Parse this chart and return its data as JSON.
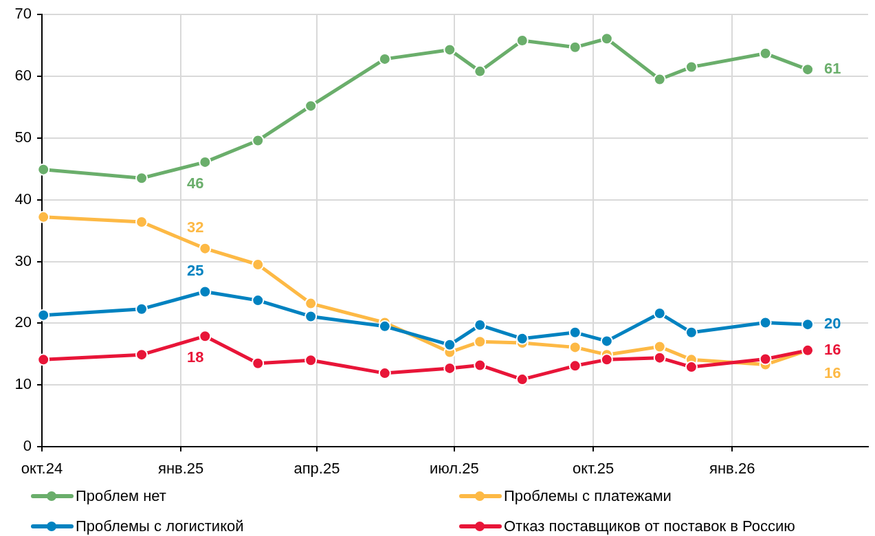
{
  "chart_data": {
    "type": "line",
    "x": [
      "2024-10-02",
      "2024-12-06",
      "2025-01-17",
      "2025-02-21",
      "2025-03-28",
      "2025-05-16",
      "2025-06-28",
      "2025-07-18",
      "2025-08-15",
      "2025-09-19",
      "2025-10-10",
      "2025-11-14",
      "2025-12-05",
      "2026-01-23",
      "2026-02-20"
    ],
    "xlim": [
      "2024-10-01",
      "2026-04-01"
    ],
    "xticks": [
      {
        "value": "2024-10-01",
        "label": "окт.24"
      },
      {
        "value": "2025-01-01",
        "label": "янв.25"
      },
      {
        "value": "2025-04-01",
        "label": "апр.25"
      },
      {
        "value": "2025-07-01",
        "label": "июл.25"
      },
      {
        "value": "2025-10-01",
        "label": "окт.25"
      },
      {
        "value": "2026-01-01",
        "label": "янв.26"
      }
    ],
    "ylim": [
      0,
      70
    ],
    "yticks": [
      0,
      10,
      20,
      30,
      40,
      50,
      60,
      70
    ],
    "grid": true,
    "legend": "bottom",
    "marker": "circle",
    "line_style": "solid",
    "series": [
      {
        "name": "Проблем нет",
        "color": "#6aae6b",
        "values": [
          44.9,
          43.5,
          46.1,
          49.6,
          55.2,
          62.8,
          64.3,
          60.8,
          65.8,
          64.7,
          66.1,
          59.5,
          61.5,
          63.7,
          61.1
        ],
        "value_labels": [
          null,
          null,
          "46",
          null,
          null,
          null,
          null,
          null,
          null,
          null,
          null,
          null,
          null,
          null,
          "61"
        ]
      },
      {
        "name": "Проблемы с платежами",
        "color": "#fdb945",
        "values": [
          37.2,
          36.4,
          32.1,
          29.5,
          23.2,
          20.1,
          15.3,
          17.0,
          16.8,
          16.1,
          14.9,
          16.2,
          14.1,
          13.3,
          15.6
        ],
        "value_labels": [
          null,
          null,
          "32",
          null,
          null,
          null,
          null,
          null,
          null,
          null,
          null,
          null,
          null,
          null,
          "16"
        ]
      },
      {
        "name": "Проблемы с логистикой",
        "color": "#0082c0",
        "values": [
          21.3,
          22.3,
          25.1,
          23.7,
          21.1,
          19.5,
          16.5,
          19.7,
          17.5,
          18.5,
          17.1,
          21.6,
          18.5,
          20.1,
          19.8
        ],
        "value_labels": [
          null,
          null,
          "25",
          null,
          null,
          null,
          null,
          null,
          null,
          null,
          null,
          null,
          null,
          null,
          "20"
        ]
      },
      {
        "name": "Отказ поставщиков от поставок в Россию",
        "color": "#e81538",
        "values": [
          14.1,
          14.9,
          17.9,
          13.5,
          14.0,
          11.9,
          12.7,
          13.2,
          10.9,
          13.1,
          14.1,
          14.4,
          12.9,
          14.2,
          15.6
        ],
        "value_labels": [
          null,
          null,
          "18",
          null,
          null,
          null,
          null,
          null,
          null,
          null,
          null,
          null,
          null,
          null,
          "16"
        ]
      }
    ]
  }
}
